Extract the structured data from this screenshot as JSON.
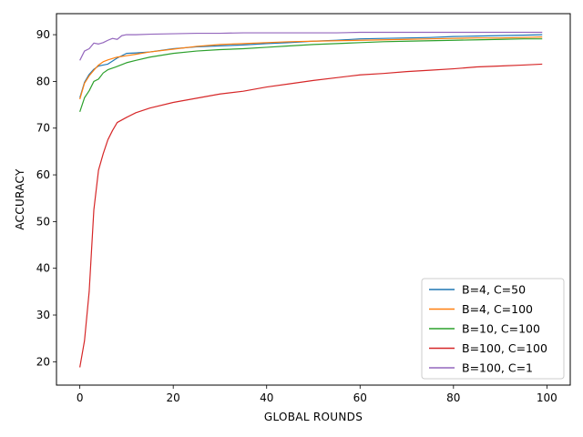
{
  "chart_data": {
    "type": "line",
    "xlabel": "GLOBAL ROUNDS",
    "ylabel": "ACCURACY",
    "xlim": [
      -5,
      105
    ],
    "ylim": [
      15,
      94.5
    ],
    "xticks": [
      0,
      20,
      40,
      60,
      80,
      100
    ],
    "yticks": [
      20,
      30,
      40,
      50,
      60,
      70,
      80,
      90
    ],
    "grid": false,
    "legend_position": "lower-right",
    "series": [
      {
        "name": "B=4, C=50",
        "color": "#1f77b4",
        "x": [
          0,
          1,
          2,
          3,
          4,
          5,
          6,
          8,
          10,
          12,
          15,
          20,
          25,
          30,
          35,
          40,
          45,
          50,
          55,
          60,
          65,
          70,
          75,
          80,
          85,
          90,
          95,
          99
        ],
        "y": [
          76.5,
          79.8,
          81.5,
          82.6,
          83.3,
          83.5,
          83.7,
          85.0,
          86.0,
          86.1,
          86.3,
          87.0,
          87.4,
          87.6,
          87.8,
          88.1,
          88.3,
          88.6,
          88.8,
          89.1,
          89.2,
          89.3,
          89.4,
          89.6,
          89.7,
          89.8,
          89.9,
          90.0
        ]
      },
      {
        "name": "B=4, C=100",
        "color": "#ff7f0e",
        "x": [
          0,
          1,
          2,
          3,
          4,
          5,
          6,
          8,
          10,
          12,
          15,
          20,
          25,
          30,
          35,
          40,
          45,
          50,
          55,
          60,
          65,
          70,
          75,
          80,
          85,
          90,
          95,
          99
        ],
        "y": [
          76.2,
          79.6,
          81.2,
          82.4,
          83.5,
          84.2,
          84.6,
          85.2,
          85.5,
          85.8,
          86.3,
          86.9,
          87.5,
          87.9,
          88.1,
          88.3,
          88.5,
          88.6,
          88.7,
          88.8,
          88.9,
          89.0,
          89.1,
          89.2,
          89.3,
          89.3,
          89.4,
          89.5
        ]
      },
      {
        "name": "B=10, C=100",
        "color": "#2ca02c",
        "x": [
          0,
          1,
          2,
          3,
          4,
          5,
          6,
          8,
          10,
          12,
          15,
          20,
          25,
          30,
          35,
          40,
          45,
          50,
          55,
          60,
          65,
          70,
          75,
          80,
          85,
          90,
          95,
          99
        ],
        "y": [
          73.5,
          76.5,
          78.0,
          80.0,
          80.5,
          81.8,
          82.5,
          83.2,
          84.0,
          84.5,
          85.2,
          86.0,
          86.5,
          86.8,
          87.0,
          87.3,
          87.6,
          87.9,
          88.1,
          88.3,
          88.5,
          88.6,
          88.7,
          88.8,
          88.9,
          89.0,
          89.1,
          89.1
        ]
      },
      {
        "name": "B=100, C=100",
        "color": "#d62728",
        "x": [
          0,
          1,
          2,
          3,
          4,
          5,
          6,
          7,
          8,
          10,
          12,
          15,
          20,
          25,
          30,
          35,
          40,
          45,
          50,
          55,
          60,
          65,
          70,
          75,
          80,
          85,
          90,
          95,
          99
        ],
        "y": [
          18.8,
          24.5,
          35.0,
          52.5,
          61.0,
          64.5,
          67.5,
          69.5,
          71.2,
          72.3,
          73.3,
          74.3,
          75.5,
          76.4,
          77.3,
          77.9,
          78.8,
          79.5,
          80.2,
          80.8,
          81.4,
          81.7,
          82.1,
          82.4,
          82.7,
          83.1,
          83.3,
          83.5,
          83.7
        ]
      },
      {
        "name": "B=100, C=1",
        "color": "#9467bd",
        "x": [
          0,
          1,
          2,
          3,
          4,
          5,
          6,
          7,
          8,
          9,
          10,
          12,
          15,
          20,
          25,
          30,
          35,
          40,
          45,
          50,
          55,
          60,
          65,
          70,
          75,
          80,
          85,
          90,
          95,
          99
        ],
        "y": [
          84.5,
          86.5,
          87.0,
          88.2,
          88.0,
          88.3,
          88.8,
          89.2,
          89.0,
          89.8,
          90.0,
          90.0,
          90.1,
          90.2,
          90.3,
          90.3,
          90.4,
          90.4,
          90.4,
          90.4,
          90.4,
          90.5,
          90.5,
          90.5,
          90.5,
          90.5,
          90.5,
          90.5,
          90.5,
          90.5
        ]
      }
    ]
  }
}
